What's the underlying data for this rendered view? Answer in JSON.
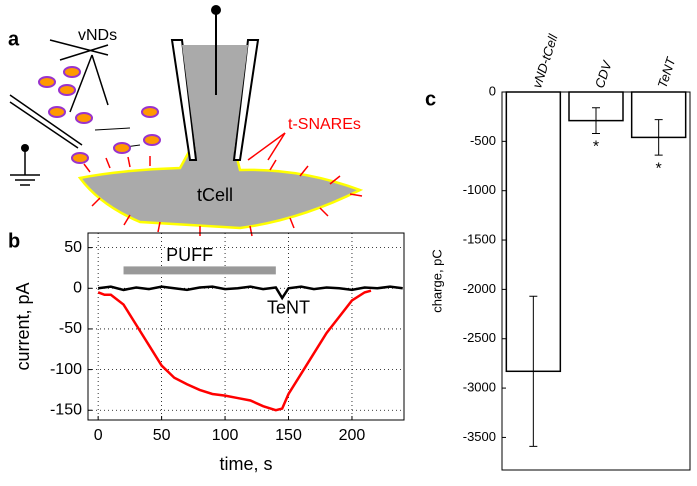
{
  "diagram": {
    "panel_label": "a",
    "labels": [
      "vNDs",
      "t-SNAREs",
      "tCell"
    ]
  },
  "chart_data": [
    {
      "type": "line",
      "panel_label": "b",
      "xlabel": "time, s",
      "ylabel": "current, pA",
      "xlim": [
        -8,
        241
      ],
      "ylim": [
        -162,
        68
      ],
      "xticks": [
        0,
        50,
        100,
        150,
        200
      ],
      "yticks": [
        50,
        0,
        -50,
        -100,
        -150
      ],
      "grid": true,
      "puff": {
        "label": "PUFF",
        "interval": [
          20,
          140
        ],
        "level": 22,
        "color": "#999999"
      },
      "series": [
        {
          "color": "#ff0000",
          "x": [
            0,
            5,
            10,
            20,
            30,
            40,
            50,
            60,
            70,
            80,
            90,
            100,
            110,
            120,
            130,
            140,
            145,
            150,
            160,
            170,
            180,
            190,
            200,
            210,
            215
          ],
          "values": [
            -5,
            -8,
            -8,
            -20,
            -45,
            -70,
            -95,
            -110,
            -118,
            -125,
            -130,
            -132,
            -135,
            -138,
            -145,
            -150,
            -148,
            -130,
            -105,
            -80,
            -55,
            -35,
            -15,
            -5,
            -3
          ]
        },
        {
          "name": "TeNT",
          "color": "#000000",
          "x": [
            0,
            10,
            20,
            30,
            40,
            50,
            60,
            70,
            80,
            90,
            100,
            110,
            120,
            130,
            140,
            145,
            150,
            160,
            170,
            180,
            190,
            200,
            210,
            220,
            230,
            240
          ],
          "values": [
            0,
            2,
            -2,
            1,
            -1,
            2,
            0,
            -2,
            1,
            2,
            -1,
            0,
            2,
            -1,
            1,
            -12,
            0,
            2,
            -1,
            1,
            0,
            -2,
            1,
            0,
            2,
            0
          ]
        }
      ]
    },
    {
      "type": "bar",
      "panel_label": "c",
      "ylabel": "charge, pC",
      "categories": [
        "vND-tCell",
        "CDV",
        "TeNT"
      ],
      "values": [
        -2830,
        -290,
        -460
      ],
      "errors": [
        760,
        130,
        180
      ],
      "significance": [
        null,
        "*",
        "*"
      ],
      "color": "#ffffff",
      "ylim": [
        -3830,
        0
      ],
      "yticks": [
        0,
        -500,
        -1000,
        -1500,
        -2000,
        -2500,
        -3000,
        -3500
      ]
    }
  ]
}
